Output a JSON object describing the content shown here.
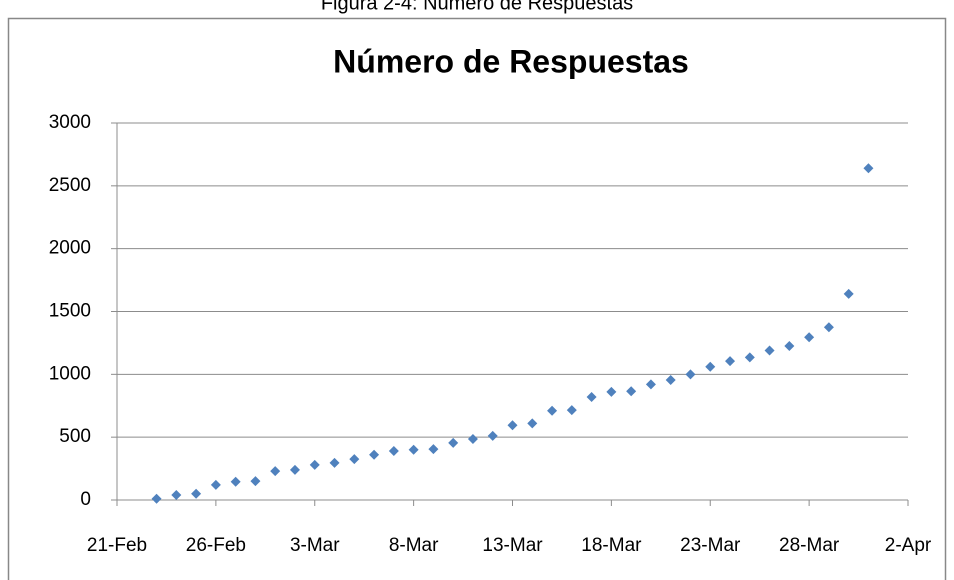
{
  "caption": "Figura 2-4: Número de Respuestas",
  "chart_data": {
    "type": "scatter",
    "title": "Número de Respuestas",
    "color": "#4f81bd",
    "grid": true,
    "x": [
      "23-Feb",
      "24-Feb",
      "25-Feb",
      "26-Feb",
      "27-Feb",
      "28-Feb",
      "1-Mar",
      "2-Mar",
      "3-Mar",
      "4-Mar",
      "5-Mar",
      "6-Mar",
      "7-Mar",
      "8-Mar",
      "9-Mar",
      "10-Mar",
      "11-Mar",
      "12-Mar",
      "13-Mar",
      "14-Mar",
      "15-Mar",
      "16-Mar",
      "17-Mar",
      "18-Mar",
      "19-Mar",
      "20-Mar",
      "21-Mar",
      "22-Mar",
      "23-Mar",
      "24-Mar",
      "25-Mar",
      "26-Mar",
      "27-Mar",
      "28-Mar",
      "29-Mar",
      "30-Mar",
      "31-Mar"
    ],
    "values": [
      10,
      40,
      50,
      120,
      145,
      150,
      230,
      240,
      280,
      295,
      325,
      360,
      390,
      400,
      405,
      455,
      485,
      510,
      595,
      610,
      710,
      715,
      820,
      860,
      865,
      920,
      955,
      1000,
      1060,
      1105,
      1135,
      1190,
      1225,
      1295,
      1375,
      1640,
      2640
    ],
    "xlim": [
      "21-Feb",
      "2-Apr"
    ],
    "xticks": [
      "21-Feb",
      "26-Feb",
      "3-Mar",
      "8-Mar",
      "13-Mar",
      "18-Mar",
      "23-Mar",
      "28-Mar",
      "2-Apr"
    ],
    "ylim": [
      0,
      3000
    ],
    "yticks": [
      0,
      500,
      1000,
      1500,
      2000,
      2500,
      3000
    ]
  }
}
